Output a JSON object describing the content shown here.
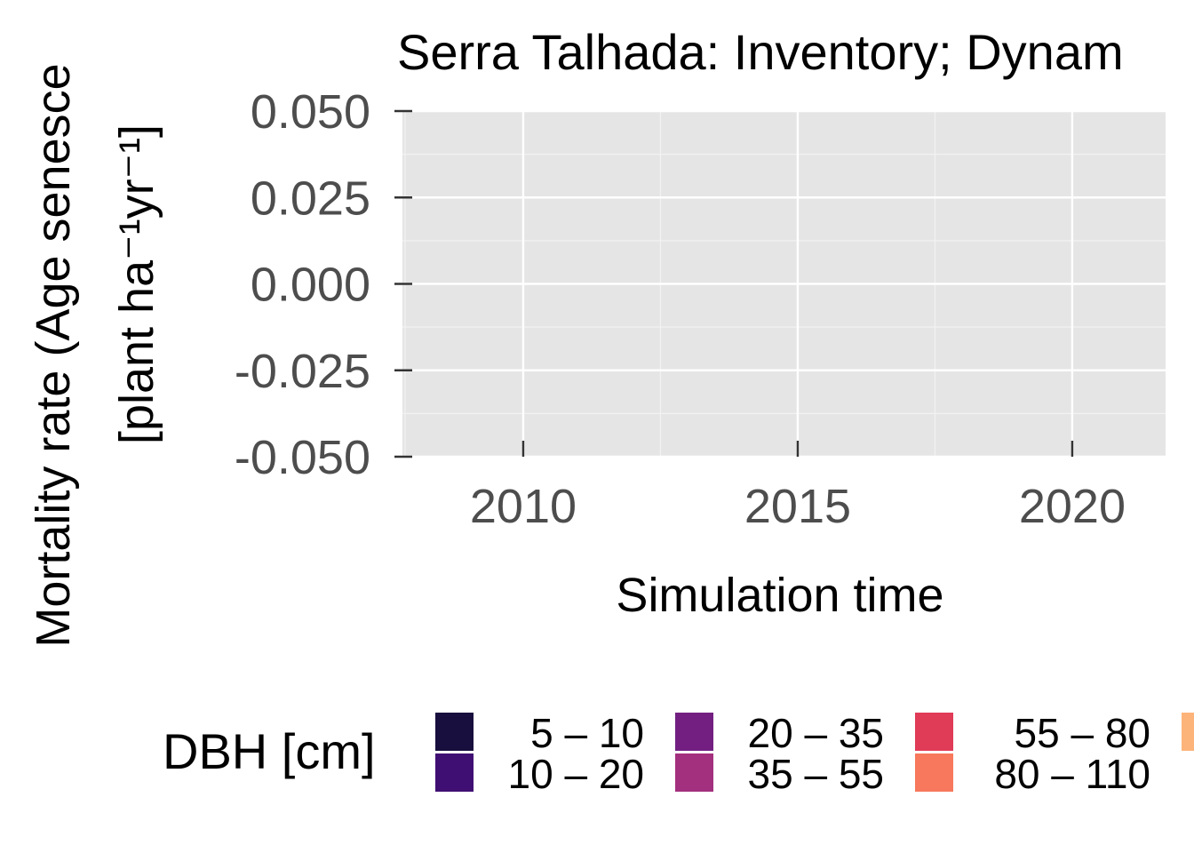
{
  "chart_data": {
    "type": "line",
    "title": "Serra Talhada: Inventory; Dynam",
    "xlabel": "Simulation time",
    "ylabel": "Mortality rate (Age senesce",
    "ylabel_unit": "[plant ha⁻¹yr⁻¹]",
    "x_ticks": [
      "2010",
      "2015",
      "2020"
    ],
    "x_tick_values": [
      2010,
      2015,
      2020
    ],
    "xlim": [
      2007.8,
      2021.7
    ],
    "y_ticks": [
      "0.050",
      "0.025",
      "0.000",
      "-0.025",
      "-0.050"
    ],
    "y_tick_values": [
      0.05,
      0.025,
      0.0,
      -0.025,
      -0.05
    ],
    "ylim": [
      -0.05,
      0.05
    ],
    "grid": true,
    "panel_background": "#e5e5e5",
    "legend": {
      "title": "DBH [cm]",
      "position": "bottom",
      "items": [
        {
          "label": "5 – 10",
          "color": "#180f3e"
        },
        {
          "label": "10 – 20",
          "color": "#400f73"
        },
        {
          "label": "20 – 35",
          "color": "#721f81"
        },
        {
          "label": "35 – 55",
          "color": "#a3307e"
        },
        {
          "label": "55 – 80",
          "color": "#e03b57"
        },
        {
          "label": "80 – 110",
          "color": "#f7785c"
        },
        {
          "label": "",
          "color": "#fcb47a"
        }
      ]
    },
    "series": []
  }
}
